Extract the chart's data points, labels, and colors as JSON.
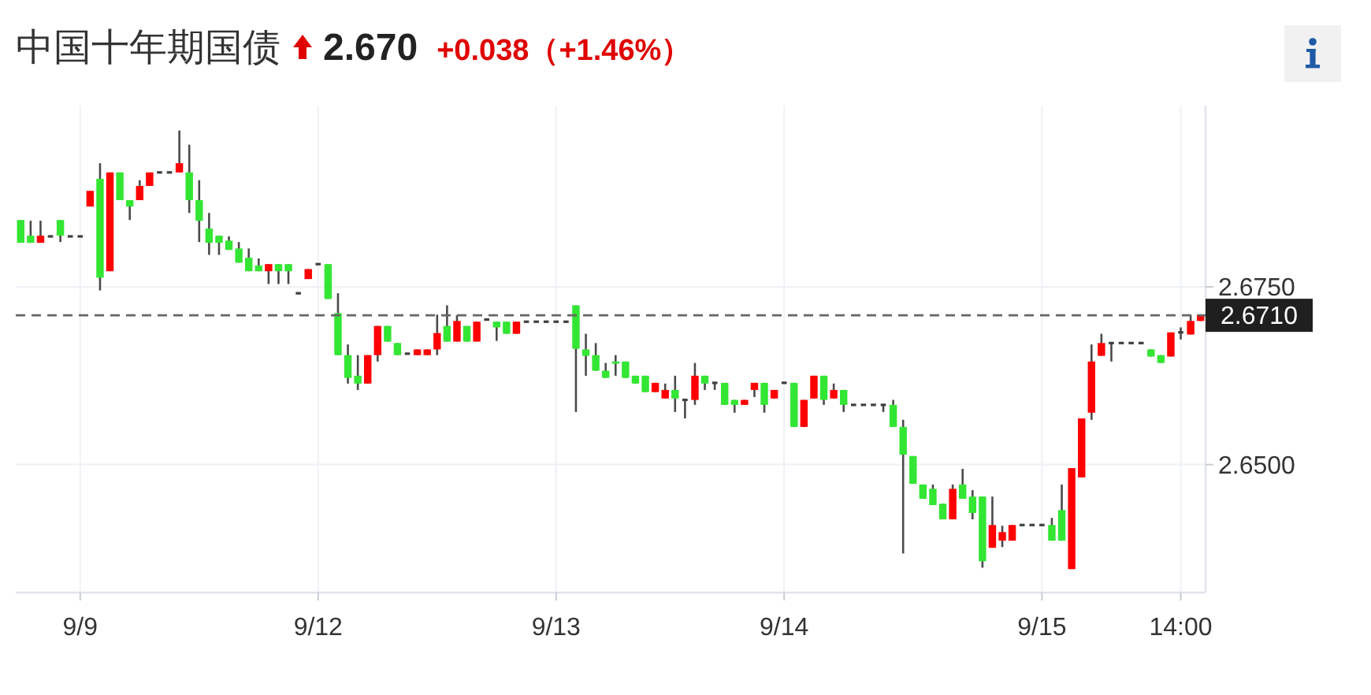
{
  "chart_data": {
    "type": "candlestick",
    "title": "中国十年期国债",
    "annotations": [
      "2.670",
      "+0.038（+1.46%）"
    ],
    "categories": [
      null,
      null,
      null,
      null,
      null,
      null,
      "9/9",
      null,
      null,
      null,
      null,
      null,
      null,
      null,
      null,
      null,
      null,
      null,
      null,
      null,
      null,
      null,
      null,
      null,
      null,
      null,
      null,
      null,
      null,
      null,
      "9/12",
      null,
      null,
      null,
      null,
      null,
      null,
      null,
      null,
      null,
      null,
      null,
      null,
      null,
      null,
      null,
      null,
      null,
      null,
      null,
      null,
      null,
      null,
      null,
      "9/13",
      null,
      null,
      null,
      null,
      null,
      null,
      null,
      null,
      null,
      null,
      null,
      null,
      null,
      null,
      null,
      null,
      null,
      null,
      null,
      null,
      null,
      null,
      "9/14",
      null,
      null,
      null,
      null,
      null,
      null,
      null,
      null,
      null,
      null,
      null,
      null,
      null,
      null,
      null,
      null,
      null,
      null,
      null,
      null,
      null,
      null,
      null,
      null,
      null,
      "9/15",
      null,
      null,
      null,
      null,
      null,
      null,
      null,
      null,
      null,
      null,
      null,
      null,
      null,
      "14:00",
      null,
      null
    ],
    "ohlc": [
      [
        2.6844,
        2.6844,
        2.6812,
        2.6812
      ],
      [
        2.6822,
        2.6843,
        2.6812,
        2.6812
      ],
      [
        2.6812,
        2.6843,
        2.6812,
        2.6822
      ],
      [
        2.6821,
        2.6821,
        2.6821,
        2.6821
      ],
      [
        2.6844,
        2.6844,
        2.6813,
        2.6822
      ],
      [
        2.6821,
        2.6821,
        2.6821,
        2.6821
      ],
      [
        2.6821,
        2.6821,
        2.6821,
        2.6821
      ],
      [
        2.6863,
        2.6885,
        2.6863,
        2.6885
      ],
      [
        2.6902,
        2.6924,
        2.6745,
        2.6763
      ],
      [
        2.6772,
        2.6911,
        2.6772,
        2.6911
      ],
      [
        2.6911,
        2.6911,
        2.6872,
        2.6872
      ],
      [
        2.6872,
        2.6872,
        2.6844,
        2.6863
      ],
      [
        2.6872,
        2.69,
        2.6872,
        2.6892
      ],
      [
        2.6892,
        2.6911,
        2.6892,
        2.6911
      ],
      [
        2.6911,
        2.6911,
        2.6911,
        2.6911
      ],
      [
        2.6911,
        2.6911,
        2.6911,
        2.6911
      ],
      [
        2.6911,
        2.697,
        2.6911,
        2.6924
      ],
      [
        2.6911,
        2.695,
        2.6854,
        2.6872
      ],
      [
        2.6872,
        2.69,
        2.6813,
        2.6843
      ],
      [
        2.6832,
        2.6854,
        2.6795,
        2.6812
      ],
      [
        2.6822,
        2.6822,
        2.6795,
        2.6812
      ],
      [
        2.6815,
        2.6821,
        2.6802,
        2.6802
      ],
      [
        2.6804,
        2.6813,
        2.6784,
        2.6784
      ],
      [
        2.6791,
        2.6804,
        2.6772,
        2.6772
      ],
      [
        2.678,
        2.679,
        2.6772,
        2.6772
      ],
      [
        2.6772,
        2.6782,
        2.6754,
        2.6782
      ],
      [
        2.6782,
        2.6782,
        2.6754,
        2.6772
      ],
      [
        2.6782,
        2.6782,
        2.6754,
        2.6772
      ],
      [
        2.6741,
        2.6741,
        2.6741,
        2.6741
      ],
      [
        2.6761,
        2.6775,
        2.6761,
        2.6775
      ],
      [
        2.6782,
        2.6782,
        2.6782,
        2.6782
      ],
      [
        2.6782,
        2.6782,
        2.6733,
        2.6733
      ],
      [
        2.6713,
        2.6741,
        2.6654,
        2.6654
      ],
      [
        2.6654,
        2.6669,
        2.6614,
        2.6622
      ],
      [
        2.6625,
        2.6654,
        2.6605,
        2.6614
      ],
      [
        2.6614,
        2.6654,
        2.6614,
        2.6654
      ],
      [
        2.6654,
        2.6695,
        2.6645,
        2.6695
      ],
      [
        2.6695,
        2.6695,
        2.6673,
        2.6673
      ],
      [
        2.6671,
        2.6671,
        2.6654,
        2.6654
      ],
      [
        2.6656,
        2.6656,
        2.6656,
        2.6656
      ],
      [
        2.6654,
        2.6662,
        2.6654,
        2.6662
      ],
      [
        2.6654,
        2.6662,
        2.6654,
        2.6662
      ],
      [
        2.6662,
        2.6711,
        2.6654,
        2.6685
      ],
      [
        2.6695,
        2.6724,
        2.6673,
        2.6673
      ],
      [
        2.6673,
        2.671,
        2.6673,
        2.6702
      ],
      [
        2.6695,
        2.6695,
        2.6673,
        2.6673
      ],
      [
        2.6673,
        2.6701,
        2.6673,
        2.6701
      ],
      [
        2.6704,
        2.6704,
        2.6704,
        2.6704
      ],
      [
        2.6701,
        2.6701,
        2.6674,
        2.6693
      ],
      [
        2.6701,
        2.6701,
        2.6684,
        2.6684
      ],
      [
        2.6684,
        2.6701,
        2.6684,
        2.6701
      ],
      [
        2.6701,
        2.6701,
        2.6701,
        2.6701
      ],
      [
        2.6701,
        2.6701,
        2.6701,
        2.6701
      ],
      [
        2.6701,
        2.6701,
        2.6701,
        2.6701
      ],
      [
        2.6701,
        2.6701,
        2.6701,
        2.6701
      ],
      [
        2.6701,
        2.6701,
        2.6701,
        2.6701
      ],
      [
        2.6724,
        2.6724,
        2.6574,
        2.6663
      ],
      [
        2.6662,
        2.6684,
        2.6625,
        2.6653
      ],
      [
        2.6654,
        2.6671,
        2.6632,
        2.6632
      ],
      [
        2.6632,
        2.6643,
        2.6622,
        2.6622
      ],
      [
        2.6645,
        2.6654,
        2.6625,
        2.6642
      ],
      [
        2.6645,
        2.6645,
        2.6622,
        2.6622
      ],
      [
        2.6625,
        2.6625,
        2.6614,
        2.6614
      ],
      [
        2.6625,
        2.6625,
        2.6602,
        2.6602
      ],
      [
        2.6602,
        2.6615,
        2.6602,
        2.6615
      ],
      [
        2.6593,
        2.6614,
        2.6593,
        2.6605
      ],
      [
        2.6605,
        2.6625,
        2.6574,
        2.6593
      ],
      [
        2.6591,
        2.6591,
        2.6565,
        2.6591
      ],
      [
        2.6591,
        2.6643,
        2.6584,
        2.6625
      ],
      [
        2.6625,
        2.6625,
        2.6605,
        2.6614
      ],
      [
        2.6615,
        2.6615,
        2.6605,
        2.6615
      ],
      [
        2.6615,
        2.6615,
        2.6584,
        2.6584
      ],
      [
        2.6591,
        2.6591,
        2.6573,
        2.6584
      ],
      [
        2.6584,
        2.6591,
        2.6584,
        2.6591
      ],
      [
        2.6605,
        2.6615,
        2.6595,
        2.6615
      ],
      [
        2.6615,
        2.6615,
        2.6573,
        2.6584
      ],
      [
        2.6593,
        2.6605,
        2.6593,
        2.6605
      ],
      [
        2.6615,
        2.6615,
        2.6615,
        2.6615
      ],
      [
        2.6615,
        2.6615,
        2.6553,
        2.6553
      ],
      [
        2.6553,
        2.6591,
        2.6553,
        2.6591
      ],
      [
        2.6593,
        2.6625,
        2.6593,
        2.6625
      ],
      [
        2.6625,
        2.6625,
        2.6584,
        2.6591
      ],
      [
        2.6593,
        2.6614,
        2.6593,
        2.6605
      ],
      [
        2.6605,
        2.6605,
        2.6574,
        2.6584
      ],
      [
        2.6584,
        2.6584,
        2.6584,
        2.6584
      ],
      [
        2.6584,
        2.6584,
        2.6584,
        2.6584
      ],
      [
        2.6584,
        2.6584,
        2.6584,
        2.6584
      ],
      [
        2.6584,
        2.6584,
        2.6574,
        2.6584
      ],
      [
        2.6584,
        2.6591,
        2.6553,
        2.6553
      ],
      [
        2.6553,
        2.6563,
        2.6375,
        2.6514
      ],
      [
        2.6512,
        2.6512,
        2.6473,
        2.6473
      ],
      [
        2.6472,
        2.6472,
        2.6452,
        2.6452
      ],
      [
        2.6466,
        2.6472,
        2.6443,
        2.6443
      ],
      [
        2.6445,
        2.6445,
        2.6423,
        2.6423
      ],
      [
        2.6423,
        2.6472,
        2.6423,
        2.6466
      ],
      [
        2.6472,
        2.6494,
        2.6452,
        2.6452
      ],
      [
        2.6455,
        2.6464,
        2.6423,
        2.6432
      ],
      [
        2.6455,
        2.6455,
        2.6355,
        2.6364
      ],
      [
        2.6383,
        2.6455,
        2.6383,
        2.6415
      ],
      [
        2.6393,
        2.6414,
        2.6384,
        2.6405
      ],
      [
        2.6393,
        2.6415,
        2.6393,
        2.6415
      ],
      [
        2.6415,
        2.6415,
        2.6415,
        2.6415
      ],
      [
        2.6415,
        2.6415,
        2.6415,
        2.6415
      ],
      [
        2.6415,
        2.6415,
        2.6415,
        2.6415
      ],
      [
        2.6415,
        2.6425,
        2.6393,
        2.6393
      ],
      [
        2.6436,
        2.6472,
        2.6393,
        2.6393
      ],
      [
        2.6353,
        2.6495,
        2.6353,
        2.6495
      ],
      [
        2.6482,
        2.6565,
        2.6482,
        2.6565
      ],
      [
        2.6573,
        2.6669,
        2.6563,
        2.6645
      ],
      [
        2.6653,
        2.6684,
        2.6653,
        2.6671
      ],
      [
        2.6671,
        2.6671,
        2.6645,
        2.6671
      ],
      [
        2.6671,
        2.6671,
        2.6671,
        2.6671
      ],
      [
        2.6671,
        2.6671,
        2.6671,
        2.6671
      ],
      [
        2.6671,
        2.6671,
        2.6671,
        2.6671
      ],
      [
        2.6662,
        2.6662,
        2.6652,
        2.6652
      ],
      [
        2.6654,
        2.6654,
        2.6643,
        2.6643
      ],
      [
        2.6652,
        2.6686,
        2.6652,
        2.6686
      ],
      [
        2.6686,
        2.6693,
        2.6676,
        2.6686
      ],
      [
        2.6683,
        2.671,
        2.6683,
        2.6702
      ],
      [
        2.6702,
        2.6711,
        2.6702,
        2.6711
      ]
    ],
    "colors": [
      "#33e633",
      "#33e633",
      "#ff0000",
      "#404040",
      "#33e633",
      "#404040",
      "#404040",
      "#ff0000",
      "#33e633",
      "#ff0000",
      "#33e633",
      "#33e633",
      "#ff0000",
      "#ff0000",
      "#404040",
      "#404040",
      "#ff0000",
      "#33e633",
      "#33e633",
      "#33e633",
      "#33e633",
      "#33e633",
      "#33e633",
      "#33e633",
      "#33e633",
      "#ff0000",
      "#33e633",
      "#33e633",
      "#404040",
      "#ff0000",
      "#404040",
      "#33e633",
      "#33e633",
      "#33e633",
      "#33e633",
      "#ff0000",
      "#ff0000",
      "#33e633",
      "#33e633",
      "#404040",
      "#ff0000",
      "#ff0000",
      "#ff0000",
      "#33e633",
      "#ff0000",
      "#33e633",
      "#ff0000",
      "#404040",
      "#33e633",
      "#33e633",
      "#ff0000",
      "#404040",
      "#404040",
      "#404040",
      "#404040",
      "#404040",
      "#33e633",
      "#33e633",
      "#33e633",
      "#33e633",
      "#33e633",
      "#33e633",
      "#33e633",
      "#33e633",
      "#ff0000",
      "#ff0000",
      "#33e633",
      "#404040",
      "#ff0000",
      "#33e633",
      "#404040",
      "#33e633",
      "#33e633",
      "#ff0000",
      "#ff0000",
      "#33e633",
      "#ff0000",
      "#404040",
      "#33e633",
      "#ff0000",
      "#ff0000",
      "#33e633",
      "#ff0000",
      "#33e633",
      "#404040",
      "#404040",
      "#404040",
      "#404040",
      "#33e633",
      "#33e633",
      "#33e633",
      "#33e633",
      "#33e633",
      "#33e633",
      "#ff0000",
      "#33e633",
      "#33e633",
      "#33e633",
      "#ff0000",
      "#ff0000",
      "#ff0000",
      "#404040",
      "#404040",
      "#404040",
      "#33e633",
      "#33e633",
      "#ff0000",
      "#ff0000",
      "#ff0000",
      "#ff0000",
      "#404040",
      "#404040",
      "#404040",
      "#404040",
      "#33e633",
      "#33e633",
      "#ff0000",
      "#404040",
      "#ff0000",
      "#ff0000"
    ],
    "ylim": [
      2.632,
      2.7005
    ],
    "yticks": [
      {
        "value": 2.65,
        "label": "2.6500"
      },
      {
        "value": 2.675,
        "label": "2.6750"
      }
    ],
    "grid": true,
    "ref_lines": [
      {
        "axis": "y",
        "value": 2.671,
        "label": "2.6710",
        "color": "#666666",
        "line_style": "dashed"
      }
    ]
  }
}
